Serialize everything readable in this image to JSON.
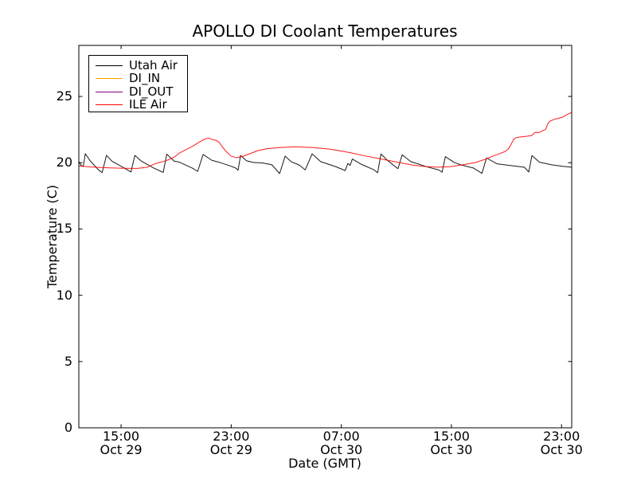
{
  "chart_data": {
    "type": "line",
    "title": "APOLLO DI Coolant Temperatures",
    "xlabel": "Date (GMT)",
    "ylabel": "Temperature (C)",
    "grid": false,
    "legend_position": "upper-left",
    "xlim": [
      11.93,
      47.74
    ],
    "ylim": [
      0,
      28.85
    ],
    "x_unit": "hours since Oct 29 00:00 GMT",
    "x_ticks": [
      {
        "value": 15,
        "time": "15:00",
        "date": "Oct 29"
      },
      {
        "value": 23,
        "time": "23:00",
        "date": "Oct 29"
      },
      {
        "value": 31,
        "time": "07:00",
        "date": "Oct 30"
      },
      {
        "value": 39,
        "time": "15:00",
        "date": "Oct 30"
      },
      {
        "value": 47,
        "time": "23:00",
        "date": "Oct 30"
      }
    ],
    "y_ticks": [
      0,
      5,
      10,
      15,
      20,
      25
    ],
    "series": [
      {
        "name": "Utah Air",
        "color": "#000000",
        "points": [
          [
            11.93,
            20.08
          ],
          [
            12.1,
            19.8
          ],
          [
            12.25,
            19.72
          ],
          [
            12.4,
            20.68
          ],
          [
            12.75,
            20.15
          ],
          [
            13.32,
            19.5
          ],
          [
            13.62,
            19.25
          ],
          [
            13.94,
            20.56
          ],
          [
            14.35,
            20.1
          ],
          [
            15.2,
            19.62
          ],
          [
            15.72,
            19.3
          ],
          [
            16.0,
            20.55
          ],
          [
            16.5,
            20.1
          ],
          [
            17.4,
            19.58
          ],
          [
            18.06,
            19.27
          ],
          [
            18.32,
            20.65
          ],
          [
            18.85,
            20.12
          ],
          [
            19.22,
            20.05
          ],
          [
            20.26,
            19.55
          ],
          [
            20.56,
            19.34
          ],
          [
            20.96,
            20.62
          ],
          [
            21.6,
            20.18
          ],
          [
            22.11,
            20.04
          ],
          [
            22.98,
            19.74
          ],
          [
            23.32,
            19.6
          ],
          [
            23.5,
            19.44
          ],
          [
            23.68,
            20.55
          ],
          [
            24.1,
            20.15
          ],
          [
            24.6,
            20.02
          ],
          [
            25.3,
            19.98
          ],
          [
            25.95,
            19.85
          ],
          [
            26.52,
            19.18
          ],
          [
            26.92,
            20.5
          ],
          [
            27.35,
            20.08
          ],
          [
            27.95,
            19.82
          ],
          [
            28.38,
            19.46
          ],
          [
            28.88,
            20.67
          ],
          [
            29.5,
            20.08
          ],
          [
            30.6,
            19.7
          ],
          [
            31.12,
            19.48
          ],
          [
            31.28,
            19.4
          ],
          [
            31.48,
            19.95
          ],
          [
            31.64,
            19.8
          ],
          [
            31.8,
            20.28
          ],
          [
            32.45,
            19.88
          ],
          [
            33.35,
            19.48
          ],
          [
            33.64,
            19.24
          ],
          [
            33.88,
            20.66
          ],
          [
            34.35,
            20.18
          ],
          [
            34.95,
            19.68
          ],
          [
            35.12,
            19.55
          ],
          [
            35.42,
            20.6
          ],
          [
            36.05,
            20.08
          ],
          [
            37.35,
            19.65
          ],
          [
            38.1,
            19.45
          ],
          [
            38.32,
            19.28
          ],
          [
            38.56,
            20.46
          ],
          [
            39.2,
            20.02
          ],
          [
            39.75,
            19.82
          ],
          [
            40.6,
            19.6
          ],
          [
            41.22,
            19.2
          ],
          [
            41.55,
            20.36
          ],
          [
            42.3,
            19.92
          ],
          [
            43.5,
            19.76
          ],
          [
            44.3,
            19.66
          ],
          [
            44.62,
            19.3
          ],
          [
            44.85,
            20.54
          ],
          [
            45.4,
            20.04
          ],
          [
            46.3,
            19.84
          ],
          [
            47.0,
            19.74
          ],
          [
            47.74,
            19.66
          ]
        ]
      },
      {
        "name": "DI_IN",
        "color": "#ffa500",
        "points": [
          [
            11.93,
            0
          ],
          [
            47.74,
            0
          ]
        ]
      },
      {
        "name": "DI_OUT",
        "color": "#800080",
        "points": [
          [
            11.93,
            0
          ],
          [
            47.74,
            0
          ]
        ]
      },
      {
        "name": "ILE Air",
        "color": "#ff0000",
        "points": [
          [
            11.93,
            19.76
          ],
          [
            12.8,
            19.68
          ],
          [
            14.0,
            19.62
          ],
          [
            15.2,
            19.58
          ],
          [
            16.2,
            19.57
          ],
          [
            16.9,
            19.66
          ],
          [
            17.49,
            19.93
          ],
          [
            18.3,
            20.16
          ],
          [
            18.9,
            20.45
          ],
          [
            19.22,
            20.72
          ],
          [
            20.26,
            21.28
          ],
          [
            20.67,
            21.55
          ],
          [
            21.07,
            21.78
          ],
          [
            21.36,
            21.86
          ],
          [
            21.6,
            21.76
          ],
          [
            21.92,
            21.68
          ],
          [
            22.11,
            21.55
          ],
          [
            22.58,
            20.9
          ],
          [
            22.98,
            20.5
          ],
          [
            23.39,
            20.38
          ],
          [
            23.85,
            20.48
          ],
          [
            24.4,
            20.7
          ],
          [
            24.9,
            20.9
          ],
          [
            25.6,
            21.06
          ],
          [
            26.5,
            21.14
          ],
          [
            27.7,
            21.2
          ],
          [
            29.0,
            21.14
          ],
          [
            30.2,
            21.02
          ],
          [
            31.66,
            20.76
          ],
          [
            32.5,
            20.56
          ],
          [
            33.5,
            20.36
          ],
          [
            34.5,
            20.16
          ],
          [
            35.4,
            19.97
          ],
          [
            36.2,
            19.82
          ],
          [
            37.0,
            19.72
          ],
          [
            38.0,
            19.66
          ],
          [
            38.9,
            19.7
          ],
          [
            39.8,
            19.84
          ],
          [
            40.7,
            20.0
          ],
          [
            41.5,
            20.28
          ],
          [
            42.06,
            20.52
          ],
          [
            42.5,
            20.68
          ],
          [
            42.9,
            20.85
          ],
          [
            43.12,
            21.02
          ],
          [
            43.32,
            21.35
          ],
          [
            43.52,
            21.76
          ],
          [
            43.72,
            21.9
          ],
          [
            44.1,
            21.95
          ],
          [
            44.5,
            22.0
          ],
          [
            44.85,
            22.06
          ],
          [
            45.02,
            22.24
          ],
          [
            45.15,
            22.3
          ],
          [
            45.32,
            22.26
          ],
          [
            45.6,
            22.4
          ],
          [
            45.85,
            22.52
          ],
          [
            46.02,
            22.98
          ],
          [
            46.2,
            23.16
          ],
          [
            46.5,
            23.28
          ],
          [
            46.8,
            23.36
          ],
          [
            47.1,
            23.45
          ],
          [
            47.35,
            23.6
          ],
          [
            47.6,
            23.72
          ],
          [
            47.74,
            23.8
          ]
        ]
      }
    ]
  }
}
